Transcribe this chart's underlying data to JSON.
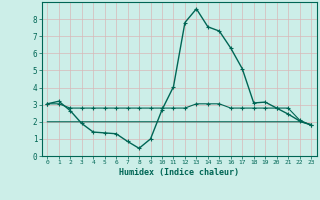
{
  "xlabel": "Humidex (Indice chaleur)",
  "background_color": "#cceee8",
  "grid_color": "#b8d8d0",
  "line_color": "#006655",
  "xlim": [
    -0.5,
    23.5
  ],
  "ylim": [
    0,
    9
  ],
  "xticks": [
    0,
    1,
    2,
    3,
    4,
    5,
    6,
    7,
    8,
    9,
    10,
    11,
    12,
    13,
    14,
    15,
    16,
    17,
    18,
    19,
    20,
    21,
    22,
    23
  ],
  "yticks": [
    0,
    1,
    2,
    3,
    4,
    5,
    6,
    7,
    8
  ],
  "series1_x": [
    0,
    1,
    2,
    3,
    4,
    5,
    6,
    7,
    8,
    9,
    10,
    11,
    12,
    13,
    14,
    15,
    16,
    17,
    18,
    19,
    20,
    21,
    22,
    23
  ],
  "series1_y": [
    3.05,
    3.2,
    2.65,
    1.9,
    1.4,
    1.35,
    1.3,
    0.85,
    0.45,
    1.0,
    2.7,
    4.05,
    7.8,
    8.6,
    7.55,
    7.3,
    6.3,
    5.1,
    3.1,
    3.15,
    2.8,
    2.45,
    2.05,
    1.8
  ],
  "series2_x": [
    0,
    1,
    2,
    3,
    4,
    5,
    6,
    7,
    8,
    9,
    10,
    11,
    12,
    13,
    14,
    15,
    16,
    17,
    18,
    19,
    20,
    21,
    22,
    23
  ],
  "series2_y": [
    3.05,
    3.05,
    2.8,
    2.8,
    2.8,
    2.8,
    2.8,
    2.8,
    2.8,
    2.8,
    2.8,
    2.8,
    2.8,
    3.05,
    3.05,
    3.05,
    2.8,
    2.8,
    2.8,
    2.8,
    2.8,
    2.8,
    2.1,
    1.8
  ],
  "series3_x": [
    0,
    1,
    2,
    3,
    4,
    5,
    6,
    7,
    8,
    9,
    10,
    11,
    12,
    13,
    14,
    15,
    16,
    17,
    18,
    19,
    20,
    21,
    22,
    23
  ],
  "series3_y": [
    2.0,
    2.0,
    2.0,
    2.0,
    2.0,
    2.0,
    2.0,
    2.0,
    2.0,
    2.0,
    2.0,
    2.0,
    2.0,
    2.0,
    2.0,
    2.0,
    2.0,
    2.0,
    2.0,
    2.0,
    2.0,
    2.0,
    2.0,
    1.85
  ]
}
